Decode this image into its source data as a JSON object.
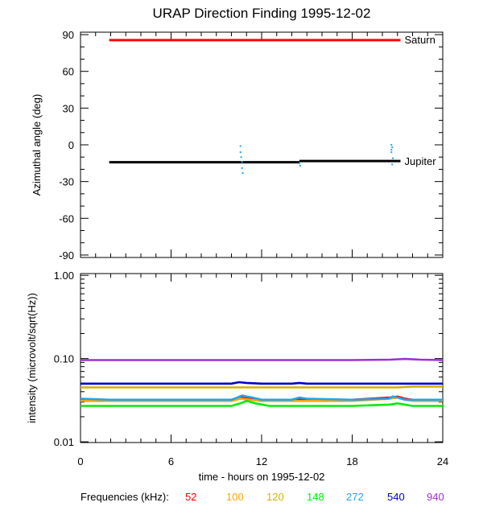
{
  "figure": {
    "title": "URAP Direction Finding  1995-12-02",
    "legend_label": "Frequencies (kHz):",
    "legend_items": [
      {
        "label": "52",
        "color": "#ff0000"
      },
      {
        "label": "100",
        "color": "#ffa500"
      },
      {
        "label": "120",
        "color": "#d4b000"
      },
      {
        "label": "148",
        "color": "#00ee00"
      },
      {
        "label": "272",
        "color": "#1ea5ee"
      },
      {
        "label": "540",
        "color": "#0000cc"
      },
      {
        "label": "940",
        "color": "#9b30d8"
      }
    ]
  },
  "chart_data": [
    {
      "type": "line",
      "title": "URAP Direction Finding  1995-12-02",
      "ylabel": "Azimuthal angle (deg)",
      "xlabel": "",
      "xlim": [
        0,
        24
      ],
      "ylim": [
        -92,
        92
      ],
      "x_ticks": [
        0,
        6,
        12,
        18,
        24
      ],
      "y_ticks": [
        90,
        60,
        30,
        0,
        -30,
        -60,
        -90
      ],
      "y_tick_labels": [
        "90",
        "60",
        "30",
        "0",
        "-30",
        "-60",
        "-90"
      ],
      "grid": false,
      "series": [
        {
          "name": "Saturn",
          "color": "#ff0000",
          "label_y": 86,
          "x": [
            1.9,
            21.2
          ],
          "y": [
            85.5,
            85.5
          ]
        },
        {
          "name": "Jupiter",
          "color": "#000000",
          "label_y": -13,
          "segments": [
            {
              "x": [
                1.9,
                14.5
              ],
              "y": [
                -14.2,
                -14.2
              ]
            },
            {
              "x": [
                14.5,
                21.2
              ],
              "y": [
                -13.2,
                -13.2
              ]
            }
          ]
        }
      ],
      "scatter": {
        "color": "#1ea5ee",
        "points": [
          [
            10.6,
            -1
          ],
          [
            10.6,
            -6
          ],
          [
            10.65,
            -10
          ],
          [
            10.7,
            -14
          ],
          [
            10.7,
            -19
          ],
          [
            10.75,
            -23
          ],
          [
            14.5,
            -15
          ],
          [
            14.55,
            -17
          ],
          [
            20.6,
            0
          ],
          [
            20.65,
            -2
          ],
          [
            20.6,
            -6
          ],
          [
            20.7,
            -11
          ],
          [
            20.65,
            -16
          ],
          [
            20.6,
            -4
          ]
        ]
      }
    },
    {
      "type": "line",
      "ylabel": "intensity (microvolt/sqrt(Hz))",
      "xlabel": "time - hours on 1995-12-02",
      "xlim": [
        0,
        24
      ],
      "ylim": [
        0.0098,
        1.05
      ],
      "yscale": "log",
      "x_ticks": [
        0,
        6,
        12,
        18,
        24
      ],
      "x_tick_labels": [
        "0",
        "6",
        "12",
        "18",
        "24"
      ],
      "y_ticks": [
        1.0,
        0.1,
        0.01
      ],
      "y_tick_labels": [
        "1.00",
        "0.10",
        "0.01"
      ],
      "grid": false,
      "series": [
        {
          "name": "940",
          "color": "#9b30d8",
          "x": [
            0,
            6,
            10,
            11,
            12,
            15,
            18,
            20.5,
            21.5,
            22.5,
            24
          ],
          "y": [
            0.096,
            0.096,
            0.096,
            0.096,
            0.096,
            0.096,
            0.096,
            0.097,
            0.099,
            0.097,
            0.096
          ]
        },
        {
          "name": "540",
          "color": "#0000cc",
          "x": [
            0,
            6,
            10,
            10.5,
            11,
            12,
            14,
            14.5,
            15,
            18,
            21,
            24
          ],
          "y": [
            0.05,
            0.05,
            0.05,
            0.052,
            0.051,
            0.05,
            0.05,
            0.051,
            0.05,
            0.05,
            0.05,
            0.05
          ]
        },
        {
          "name": "120",
          "color": "#d4b000",
          "x": [
            0,
            6,
            12,
            18,
            21,
            22,
            24
          ],
          "y": [
            0.045,
            0.045,
            0.045,
            0.045,
            0.045,
            0.046,
            0.046
          ]
        },
        {
          "name": "52",
          "color": "#ff0000",
          "x": [
            0,
            6,
            10,
            10.6,
            11.2,
            12,
            14,
            15,
            18,
            20.5,
            21,
            21.5,
            22,
            24
          ],
          "y": [
            0.032,
            0.032,
            0.032,
            0.034,
            0.033,
            0.032,
            0.032,
            0.032,
            0.032,
            0.034,
            0.035,
            0.033,
            0.032,
            0.032
          ]
        },
        {
          "name": "100",
          "color": "#ffa500",
          "x": [
            0,
            6,
            10,
            10.6,
            11.2,
            12,
            14,
            15,
            18,
            20.5,
            21,
            21.5,
            22,
            24
          ],
          "y": [
            0.031,
            0.031,
            0.031,
            0.033,
            0.032,
            0.031,
            0.031,
            0.031,
            0.031,
            0.033,
            0.034,
            0.032,
            0.031,
            0.031
          ]
        },
        {
          "name": "272",
          "color": "#1ea5ee",
          "x": [
            0,
            2,
            6,
            10,
            10.4,
            10.7,
            11,
            11.4,
            12,
            14,
            14.5,
            15,
            18,
            20.4,
            20.7,
            21,
            21.5,
            22,
            24
          ],
          "y": [
            0.033,
            0.032,
            0.032,
            0.032,
            0.034,
            0.036,
            0.035,
            0.034,
            0.032,
            0.032,
            0.034,
            0.033,
            0.032,
            0.033,
            0.035,
            0.034,
            0.032,
            0.032,
            0.032
          ]
        },
        {
          "name": "148",
          "color": "#00ee00",
          "x": [
            0,
            6,
            10,
            10.6,
            11,
            11.6,
            12.5,
            14,
            18,
            20.5,
            21,
            22,
            24
          ],
          "y": [
            0.027,
            0.027,
            0.027,
            0.029,
            0.031,
            0.029,
            0.027,
            0.027,
            0.027,
            0.028,
            0.029,
            0.027,
            0.027
          ]
        }
      ]
    }
  ]
}
